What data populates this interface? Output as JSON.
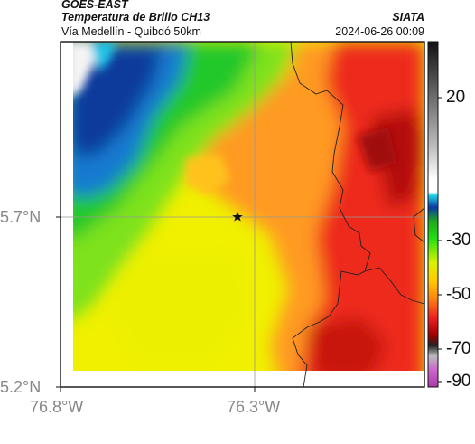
{
  "header": {
    "satellite": "GOES-EAST",
    "product": "Temperatura de Brillo CH13",
    "route": "Vía Medellín - Quibdó 50km",
    "agency": "SIATA",
    "timestamp": "2024-06-26 00:09"
  },
  "map": {
    "lat_labels": [
      "5.7°N",
      "5.2°N"
    ],
    "lon_labels": [
      "76.8°W",
      "76.3°W"
    ],
    "marker": "star-marker",
    "colors": {
      "cold_white": "#f2f2f2",
      "cyan": "#18c6e4",
      "blue": "#0b4fa5",
      "dark_blue": "#0a2a80",
      "green": "#1fc41f",
      "yellow_green": "#b8f000",
      "yellow": "#f2f200",
      "orange": "#ff9a1a",
      "red": "#e82020",
      "dark_red": "#b40a0a"
    }
  },
  "colorbar": {
    "ticks": [
      "20",
      "-30",
      "-50",
      "-70",
      "-90"
    ]
  }
}
